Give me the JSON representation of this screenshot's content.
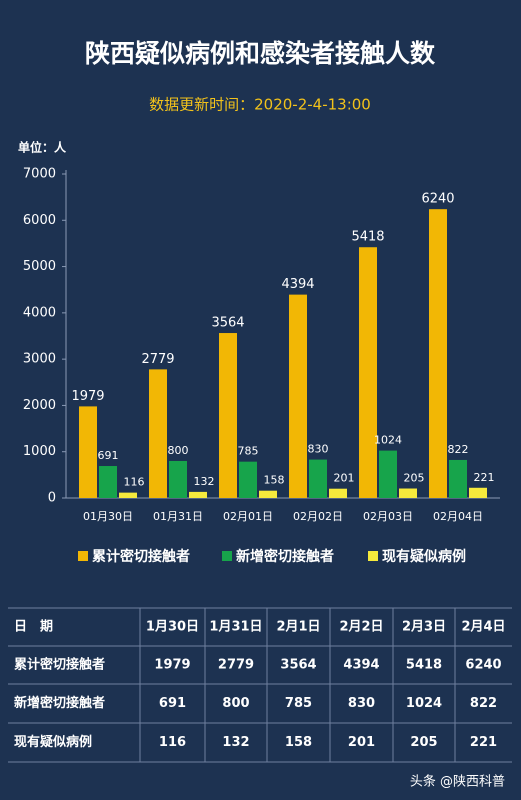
{
  "chart_data": {
    "type": "bar",
    "title": "陕西疑似病例和感染者接触人数",
    "subtitle": "数据更新时间：2020-2-4-13:00",
    "unit_label": "单位：人",
    "categories": [
      "01月30日",
      "01月31日",
      "02月01日",
      "02月02日",
      "02月03日",
      "02月04日"
    ],
    "series": [
      {
        "name": "累计密切接触者",
        "color": "#f2b705",
        "values": [
          1979,
          2779,
          3564,
          4394,
          5418,
          6240
        ]
      },
      {
        "name": "新增密切接触者",
        "color": "#17a44b",
        "values": [
          691,
          800,
          785,
          830,
          1024,
          822
        ]
      },
      {
        "name": "现有疑似病例",
        "color": "#f6ea3c",
        "values": [
          116,
          132,
          158,
          201,
          205,
          221
        ]
      }
    ],
    "ylim": [
      0,
      7000
    ],
    "yticks": [
      0,
      1000,
      2000,
      3000,
      4000,
      5000,
      6000,
      7000
    ],
    "grid": false
  },
  "table": {
    "header": [
      "日　期",
      "1月30日",
      "1月31日",
      "2月1日",
      "2月2日",
      "2月3日",
      "2月4日"
    ],
    "rows": [
      [
        "累计密切接触者",
        1979,
        2779,
        3564,
        4394,
        5418,
        6240
      ],
      [
        "新增密切接触者",
        691,
        800,
        785,
        830,
        1024,
        822
      ],
      [
        "现有疑似病例",
        116,
        132,
        158,
        201,
        205,
        221
      ]
    ]
  },
  "footer": "头条 @陕西科普"
}
